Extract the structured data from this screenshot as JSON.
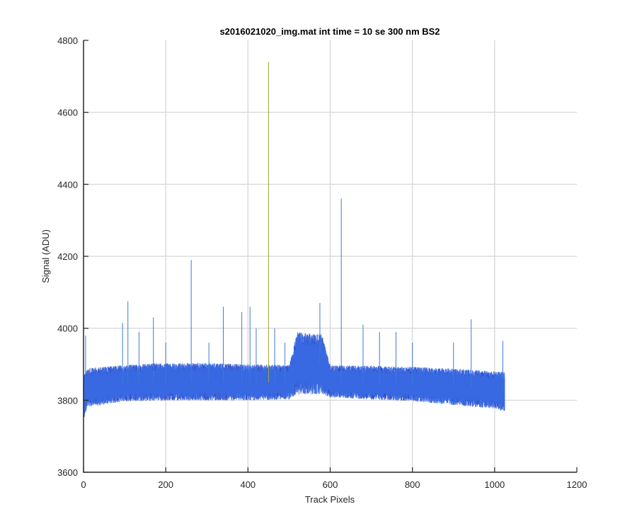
{
  "chart_data": {
    "type": "line",
    "title": "s2016021020_img.mat int time = 10 se  300 nm BS2",
    "xlabel": "Track Pixels",
    "ylabel": "Signal (ADU)",
    "xlim": [
      0,
      1200
    ],
    "ylim": [
      3600,
      4800
    ],
    "xticks": [
      0,
      200,
      400,
      600,
      800,
      1000,
      1200
    ],
    "yticks": [
      3600,
      3800,
      4000,
      4200,
      4400,
      4600,
      4800
    ],
    "grid": true,
    "x_range": [
      1,
      1024
    ],
    "series_colors": [
      "#1f5fe0",
      "#2a3fb8",
      "#3b6fe8"
    ],
    "baseline_envelope": {
      "x": [
        1,
        10,
        100,
        200,
        300,
        400,
        500,
        520,
        580,
        600,
        700,
        800,
        900,
        1000,
        1024
      ],
      "lower": [
        3760,
        3790,
        3805,
        3808,
        3808,
        3808,
        3810,
        3830,
        3830,
        3815,
        3810,
        3805,
        3795,
        3785,
        3778
      ],
      "upper": [
        3860,
        3880,
        3890,
        3895,
        3895,
        3892,
        3890,
        3975,
        3970,
        3890,
        3888,
        3885,
        3880,
        3872,
        3870
      ]
    },
    "spikes": [
      {
        "x": 5,
        "y": 3980
      },
      {
        "x": 95,
        "y": 4015
      },
      {
        "x": 108,
        "y": 4075
      },
      {
        "x": 135,
        "y": 3990
      },
      {
        "x": 170,
        "y": 4030
      },
      {
        "x": 200,
        "y": 3960
      },
      {
        "x": 262,
        "y": 4190
      },
      {
        "x": 305,
        "y": 3960
      },
      {
        "x": 340,
        "y": 4060
      },
      {
        "x": 385,
        "y": 4045
      },
      {
        "x": 405,
        "y": 4060
      },
      {
        "x": 420,
        "y": 4000
      },
      {
        "x": 450,
        "y": 4740
      },
      {
        "x": 465,
        "y": 4000
      },
      {
        "x": 490,
        "y": 3960
      },
      {
        "x": 575,
        "y": 4070
      },
      {
        "x": 627,
        "y": 4360
      },
      {
        "x": 680,
        "y": 4010
      },
      {
        "x": 720,
        "y": 3990
      },
      {
        "x": 760,
        "y": 3990
      },
      {
        "x": 800,
        "y": 3960
      },
      {
        "x": 900,
        "y": 3960
      },
      {
        "x": 943,
        "y": 4025
      },
      {
        "x": 1020,
        "y": 3965
      }
    ]
  }
}
